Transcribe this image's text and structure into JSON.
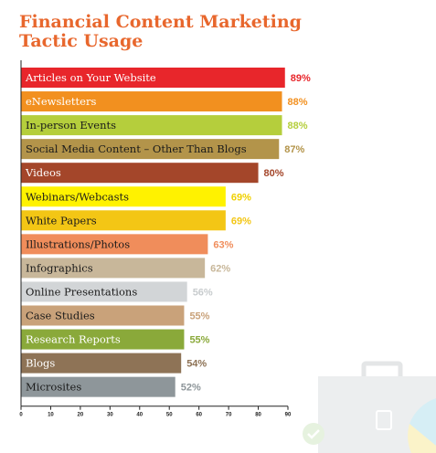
{
  "chart_data": {
    "type": "bar",
    "orientation": "horizontal",
    "title_lines": [
      "Financial Content Marketing",
      "Tactic Usage"
    ],
    "categories": [
      "Articles on Your Website",
      "eNewsletters",
      "In-person Events",
      "Social Media Content – Other Than Blogs",
      "Videos",
      "Webinars/Webcasts",
      "White Papers",
      "Illustrations/Photos",
      "Infographics",
      "Online Presentations",
      "Case Studies",
      "Research Reports",
      "Blogs",
      "Microsites"
    ],
    "values": [
      89,
      88,
      88,
      87,
      80,
      69,
      69,
      63,
      62,
      56,
      55,
      55,
      54,
      52
    ],
    "value_labels": [
      "89%",
      "88%",
      "88%",
      "87%",
      "80%",
      "69%",
      "69%",
      "63%",
      "62%",
      "56%",
      "55%",
      "55%",
      "54%",
      "52%"
    ],
    "bar_colors": [
      "#e8262b",
      "#f2901f",
      "#b5ce3c",
      "#b3944a",
      "#a4462a",
      "#fff200",
      "#f3c615",
      "#f08d5b",
      "#c8b79a",
      "#d2d5d7",
      "#c9a27a",
      "#8aa93a",
      "#8e7356",
      "#8e969a"
    ],
    "label_colors": [
      "#e8262b",
      "#f2901f",
      "#b5ce3c",
      "#b3944a",
      "#a4462a",
      "#f0d000",
      "#f3c615",
      "#f08d5b",
      "#c8b79a",
      "#c8ccce",
      "#c9a27a",
      "#8aa93a",
      "#8e7356",
      "#8e969a"
    ],
    "text_colors": [
      "#ffffff",
      "#ffffff",
      "#1a1a1a",
      "#1a1a1a",
      "#ffffff",
      "#1a1a1a",
      "#1a1a1a",
      "#1a1a1a",
      "#1a1a1a",
      "#1a1a1a",
      "#1a1a1a",
      "#ffffff",
      "#ffffff",
      "#1a1a1a"
    ],
    "xticks": [
      0,
      10,
      20,
      30,
      40,
      50,
      60,
      70,
      80,
      90
    ],
    "xlim": [
      0,
      90
    ],
    "xlabel": "",
    "ylabel": "",
    "grid": false,
    "legend": "none"
  },
  "colors": {
    "title": "#e8672d"
  }
}
